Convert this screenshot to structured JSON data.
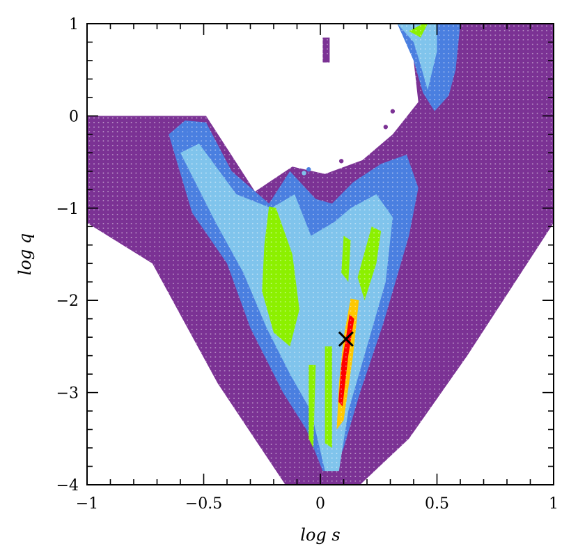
{
  "chart_data": {
    "type": "scatter",
    "title": "",
    "xlabel": "log s",
    "ylabel": "log q",
    "xlim": [
      -1,
      1
    ],
    "ylim": [
      -4,
      1
    ],
    "xticks": [
      {
        "value": -1,
        "label": "−1"
      },
      {
        "value": -0.5,
        "label": "−0.5"
      },
      {
        "value": 0,
        "label": "0"
      },
      {
        "value": 0.5,
        "label": "0.5"
      },
      {
        "value": 1,
        "label": "1"
      }
    ],
    "yticks": [
      {
        "value": 1,
        "label": "1"
      },
      {
        "value": 0,
        "label": "0"
      },
      {
        "value": -1,
        "label": "−1"
      },
      {
        "value": -2,
        "label": "−2"
      },
      {
        "value": -3,
        "label": "−3"
      },
      {
        "value": -4,
        "label": "−4"
      }
    ],
    "grid": false,
    "legend": "none",
    "colors": {
      "level_1": "#7b3294",
      "level_2": "#4a7fe0",
      "level_3": "#80c4ec",
      "level_4": "#8cf000",
      "level_5": "#ffc800",
      "level_6": "#ff0000",
      "marker": "#000000"
    },
    "regions": [
      {
        "level": "level_1",
        "polygon": [
          [
            -1,
            0
          ],
          [
            -0.49,
            0
          ],
          [
            -0.28,
            -0.82
          ],
          [
            -0.12,
            -0.55
          ],
          [
            0.02,
            -0.63
          ],
          [
            0.18,
            -0.48
          ],
          [
            0.31,
            -0.2
          ],
          [
            0.42,
            0.15
          ],
          [
            0.4,
            0.6
          ],
          [
            0.34,
            0.98
          ],
          [
            0.61,
            1.0
          ],
          [
            1,
            1
          ],
          [
            1,
            -1.16
          ],
          [
            0.63,
            -2.6
          ],
          [
            0.38,
            -3.5
          ],
          [
            0.17,
            -4
          ],
          [
            -0.15,
            -4
          ],
          [
            -0.44,
            -2.9
          ],
          [
            -0.72,
            -1.6
          ],
          [
            -1,
            -1.16
          ]
        ]
      },
      {
        "level": "level_1",
        "polygon": [
          [
            0.01,
            0.85
          ],
          [
            0.04,
            0.85
          ],
          [
            0.04,
            0.58
          ],
          [
            0.01,
            0.58
          ]
        ]
      },
      {
        "level": "level_2",
        "polygon": [
          [
            -0.65,
            -0.2
          ],
          [
            -0.58,
            -0.05
          ],
          [
            -0.49,
            -0.07
          ],
          [
            -0.38,
            -0.6
          ],
          [
            -0.22,
            -0.95
          ],
          [
            -0.13,
            -0.6
          ],
          [
            -0.02,
            -0.9
          ],
          [
            0.05,
            -0.95
          ],
          [
            0.14,
            -0.72
          ],
          [
            0.26,
            -0.52
          ],
          [
            0.37,
            -0.42
          ],
          [
            0.42,
            -0.78
          ],
          [
            0.38,
            -1.3
          ],
          [
            0.27,
            -2.25
          ],
          [
            0.17,
            -3.0
          ],
          [
            0.1,
            -3.6
          ],
          [
            0.06,
            -3.85
          ],
          [
            0.01,
            -3.85
          ],
          [
            -0.06,
            -3.4
          ],
          [
            -0.16,
            -3.0
          ],
          [
            -0.3,
            -2.3
          ],
          [
            -0.4,
            -1.6
          ],
          [
            -0.55,
            -1.05
          ]
        ]
      },
      {
        "level": "level_2",
        "polygon": [
          [
            0.33,
            1.0
          ],
          [
            0.6,
            1.0
          ],
          [
            0.58,
            0.5
          ],
          [
            0.55,
            0.22
          ],
          [
            0.49,
            0.05
          ],
          [
            0.44,
            0.25
          ],
          [
            0.4,
            0.6
          ]
        ]
      },
      {
        "level": "level_3",
        "polygon": [
          [
            -0.6,
            -0.4
          ],
          [
            -0.52,
            -0.3
          ],
          [
            -0.36,
            -0.85
          ],
          [
            -0.21,
            -1.0
          ],
          [
            -0.11,
            -0.85
          ],
          [
            -0.04,
            -1.3
          ],
          [
            0.06,
            -1.15
          ],
          [
            0.13,
            -1.0
          ],
          [
            0.24,
            -0.85
          ],
          [
            0.31,
            -1.1
          ],
          [
            0.28,
            -1.8
          ],
          [
            0.2,
            -2.5
          ],
          [
            0.12,
            -3.2
          ],
          [
            0.08,
            -3.85
          ],
          [
            0.02,
            -3.85
          ],
          [
            -0.04,
            -3.2
          ],
          [
            -0.13,
            -2.8
          ],
          [
            -0.23,
            -2.3
          ],
          [
            -0.33,
            -1.7
          ],
          [
            -0.45,
            -1.15
          ]
        ]
      },
      {
        "level": "level_3",
        "polygon": [
          [
            0.33,
            1.0
          ],
          [
            0.5,
            1.0
          ],
          [
            0.5,
            0.7
          ],
          [
            0.46,
            0.28
          ],
          [
            0.43,
            0.55
          ],
          [
            0.4,
            0.8
          ]
        ]
      },
      {
        "level": "level_4",
        "polygon": [
          [
            -0.22,
            -0.98
          ],
          [
            -0.19,
            -1.0
          ],
          [
            -0.12,
            -1.5
          ],
          [
            -0.09,
            -2.1
          ],
          [
            -0.13,
            -2.5
          ],
          [
            -0.2,
            -2.35
          ],
          [
            -0.25,
            -1.9
          ],
          [
            -0.24,
            -1.4
          ]
        ]
      },
      {
        "level": "level_4",
        "polygon": [
          [
            0.22,
            -1.2
          ],
          [
            0.26,
            -1.25
          ],
          [
            0.24,
            -1.6
          ],
          [
            0.19,
            -2.0
          ],
          [
            0.16,
            -1.75
          ]
        ]
      },
      {
        "level": "level_4",
        "polygon": [
          [
            0.1,
            -1.3
          ],
          [
            0.13,
            -1.35
          ],
          [
            0.12,
            -1.8
          ],
          [
            0.09,
            -1.7
          ]
        ]
      },
      {
        "level": "level_4",
        "polygon": [
          [
            -0.05,
            -2.7
          ],
          [
            -0.02,
            -2.7
          ],
          [
            -0.03,
            -3.6
          ],
          [
            -0.05,
            -3.5
          ]
        ]
      },
      {
        "level": "level_4",
        "polygon": [
          [
            0.02,
            -2.5
          ],
          [
            0.05,
            -2.5
          ],
          [
            0.05,
            -3.6
          ],
          [
            0.02,
            -3.55
          ]
        ]
      },
      {
        "level": "level_4",
        "polygon": [
          [
            0.38,
            0.92
          ],
          [
            0.44,
            1.0
          ],
          [
            0.46,
            1.0
          ],
          [
            0.43,
            0.85
          ]
        ]
      },
      {
        "level": "level_5",
        "polygon": [
          [
            0.13,
            -1.98
          ],
          [
            0.165,
            -2.0
          ],
          [
            0.14,
            -2.6
          ],
          [
            0.1,
            -3.3
          ],
          [
            0.07,
            -3.4
          ],
          [
            0.08,
            -2.9
          ],
          [
            0.1,
            -2.4
          ]
        ]
      },
      {
        "level": "level_6",
        "polygon": [
          [
            0.125,
            -2.15
          ],
          [
            0.145,
            -2.2
          ],
          [
            0.12,
            -2.6
          ],
          [
            0.095,
            -3.15
          ],
          [
            0.078,
            -3.1
          ],
          [
            0.09,
            -2.7
          ],
          [
            0.11,
            -2.4
          ]
        ]
      }
    ],
    "points": [
      {
        "x": 0.03,
        "y": 0.62,
        "level": "level_1"
      },
      {
        "x": 0.28,
        "y": -0.12,
        "level": "level_1"
      },
      {
        "x": 0.31,
        "y": 0.05,
        "level": "level_1"
      },
      {
        "x": -0.57,
        "y": -0.15,
        "level": "level_2"
      },
      {
        "x": -0.05,
        "y": -0.58,
        "level": "level_2"
      },
      {
        "x": -0.07,
        "y": -0.62,
        "level": "level_3"
      },
      {
        "x": 0.09,
        "y": -0.49,
        "level": "level_1"
      }
    ],
    "marker": {
      "x": 0.11,
      "y": -2.42,
      "shape": "x"
    }
  }
}
